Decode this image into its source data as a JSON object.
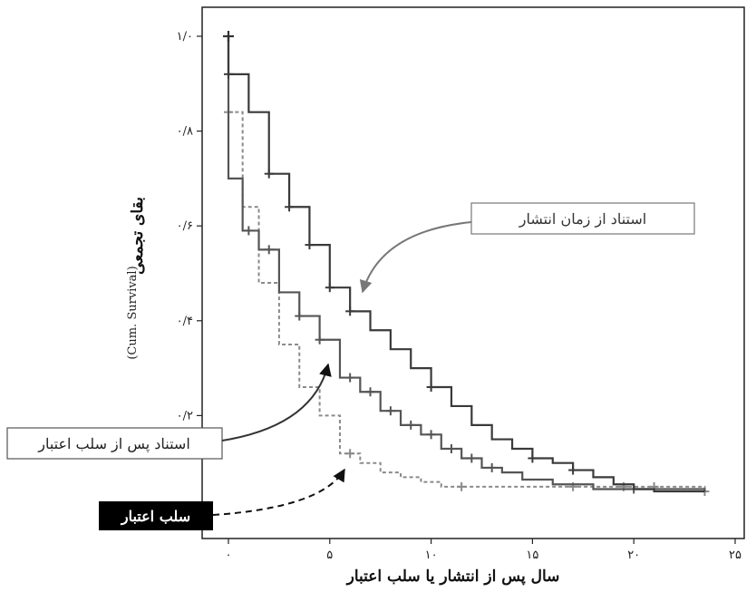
{
  "chart_data": {
    "type": "line",
    "title": "",
    "xlabel": "سال پس از انتشار یا سلب اعتبار",
    "ylabel": "بقای تجمعی",
    "ylabel_latin": "(Cum. Survival)",
    "xlim": [
      -1,
      26
    ],
    "ylim": [
      0,
      1.06
    ],
    "x_ticks": [
      {
        "value": 0,
        "label": "۰"
      },
      {
        "value": 5,
        "label": "۵"
      },
      {
        "value": 10,
        "label": "۱۰"
      },
      {
        "value": 15,
        "label": "۱۵"
      },
      {
        "value": 20,
        "label": "۲۰"
      },
      {
        "value": 25,
        "label": "۲۵"
      }
    ],
    "y_ticks": [
      {
        "value": 0.2,
        "label": "۰/۲"
      },
      {
        "value": 0.4,
        "label": "۰/۴"
      },
      {
        "value": 0.6,
        "label": "۰/۶"
      },
      {
        "value": 0.8,
        "label": "۰/۸"
      },
      {
        "value": 1.0,
        "label": "۱/۰"
      }
    ],
    "grid": false,
    "series": [
      {
        "name": "استناد از زمان انتشار",
        "style": "solid",
        "color": "#3a3a3a",
        "x": [
          0,
          1,
          2,
          3,
          4,
          5,
          6,
          7,
          8,
          9,
          10,
          11,
          12,
          13,
          14,
          15,
          16,
          17,
          18,
          19,
          20,
          21,
          23.5
        ],
        "y": [
          0.92,
          0.84,
          0.71,
          0.64,
          0.56,
          0.47,
          0.42,
          0.38,
          0.34,
          0.3,
          0.26,
          0.22,
          0.18,
          0.15,
          0.13,
          0.11,
          0.1,
          0.085,
          0.07,
          0.055,
          0.045,
          0.04,
          0.04
        ],
        "censor_x": [
          0,
          2,
          3,
          4,
          5,
          6,
          10,
          15,
          17
        ]
      },
      {
        "name": "استناد پس از سلب اعتبار",
        "style": "solid",
        "color": "#555555",
        "x": [
          0,
          0.7,
          1.5,
          2.5,
          3.5,
          4.5,
          5.5,
          6.5,
          7.5,
          8.5,
          9.5,
          10.5,
          11.5,
          12.5,
          13.5,
          14.5,
          16,
          18,
          23.5
        ],
        "y": [
          0.7,
          0.59,
          0.55,
          0.46,
          0.41,
          0.36,
          0.28,
          0.25,
          0.21,
          0.18,
          0.16,
          0.13,
          0.11,
          0.09,
          0.08,
          0.065,
          0.055,
          0.045,
          0.04
        ],
        "censor_x": [
          1,
          2,
          3.5,
          4.5,
          6,
          7,
          8,
          9,
          10,
          11,
          12,
          13,
          20
        ]
      },
      {
        "name": "سلب اعتبار",
        "style": "dashed",
        "color": "#8a8a8a",
        "x": [
          0,
          0.7,
          1.5,
          2.5,
          3.5,
          4.5,
          5.5,
          6.5,
          7.5,
          8.5,
          9.5,
          10.5,
          23.5
        ],
        "y": [
          0.84,
          0.64,
          0.48,
          0.35,
          0.26,
          0.2,
          0.12,
          0.1,
          0.08,
          0.07,
          0.06,
          0.05,
          0.04
        ],
        "censor_x": [
          0,
          6,
          11.5,
          17,
          19.5,
          21,
          23.5
        ]
      }
    ],
    "annotations": [
      {
        "text": "استناد از زمان انتشار",
        "target_series": 0
      },
      {
        "text": "استناد پس از سلب اعتبار",
        "target_series": 1
      },
      {
        "text": "سلب اعتبار",
        "target_series": 2,
        "inverted": true
      }
    ]
  }
}
